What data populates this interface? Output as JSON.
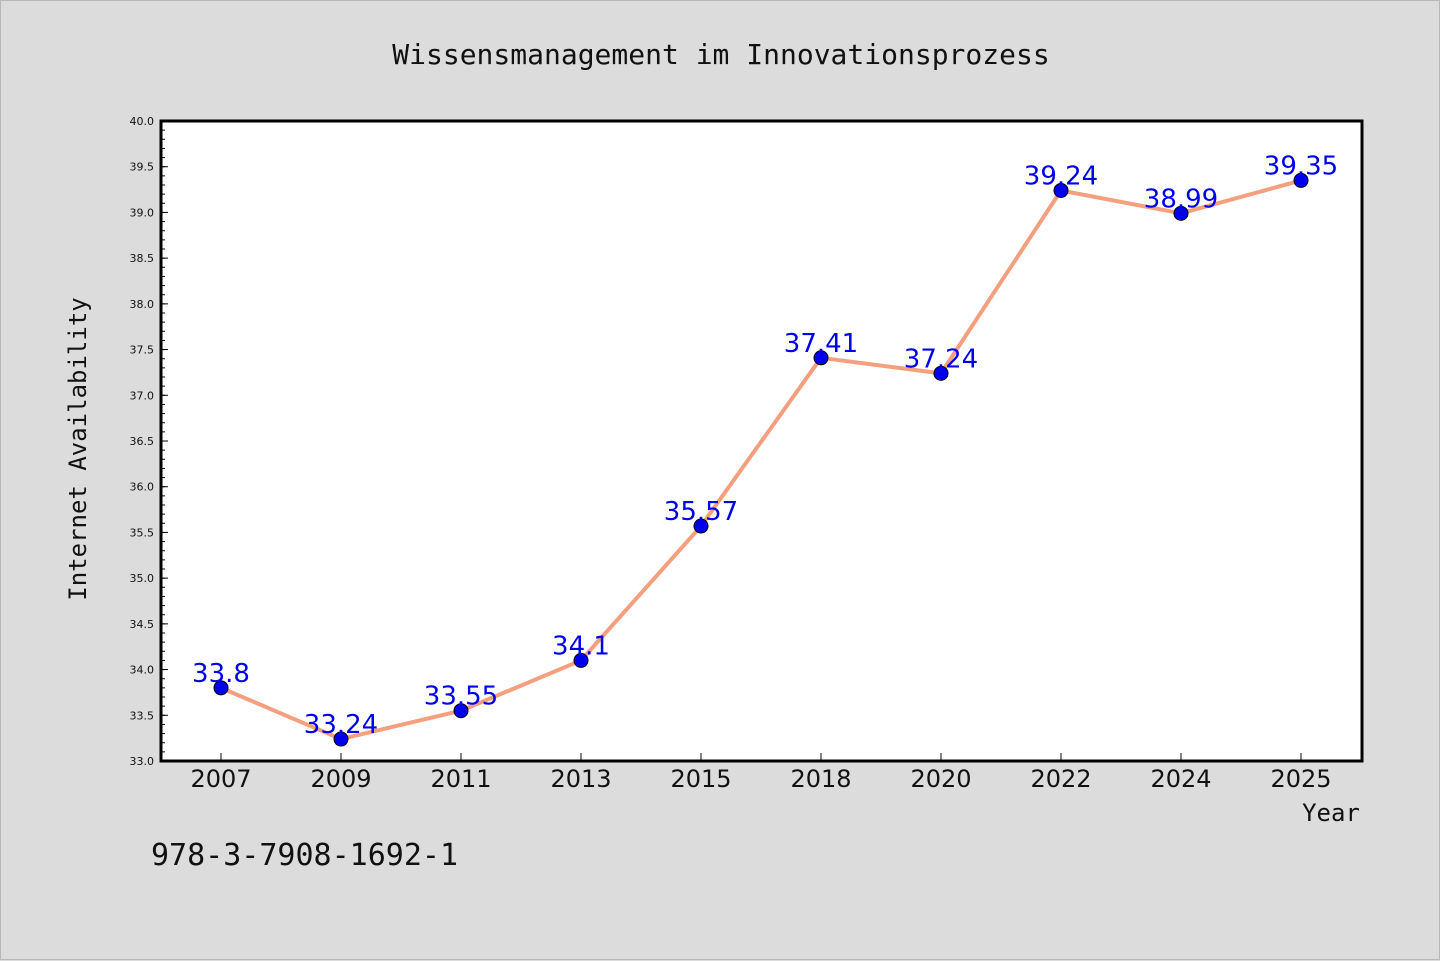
{
  "chart_data": {
    "type": "line",
    "title": "Wissensmanagement im Innovationsprozess",
    "xlabel": "Year",
    "ylabel": "Internet Availability",
    "categories": [
      "2007",
      "2009",
      "2011",
      "2013",
      "2015",
      "2018",
      "2020",
      "2022",
      "2024",
      "2025"
    ],
    "series": [
      {
        "values": [
          33.8,
          33.24,
          33.55,
          34.1,
          35.57,
          37.41,
          37.24,
          39.24,
          38.99,
          39.35
        ],
        "data_labels": [
          "33.8",
          "33.24",
          "33.55",
          "34.1",
          "35.57",
          "37.41",
          "37.24",
          "39.24",
          "38.99",
          "39.35"
        ]
      }
    ],
    "ylim": [
      33.0,
      40.0
    ],
    "yticks": [
      "33.0",
      "33.5",
      "34.0",
      "34.5",
      "35.0",
      "35.5",
      "36.0",
      "36.5",
      "37.0",
      "37.5",
      "38.0",
      "38.5",
      "39.0",
      "39.5",
      "40.0"
    ],
    "grid": false,
    "legend": "none",
    "colors": {
      "line": "#f4a07e",
      "marker": "#0000ee",
      "label": "#0000ee",
      "background": "#dcdcdc",
      "plot_background": "#ffffff"
    }
  },
  "footer": {
    "isbn": "978-3-7908-1692-1"
  }
}
